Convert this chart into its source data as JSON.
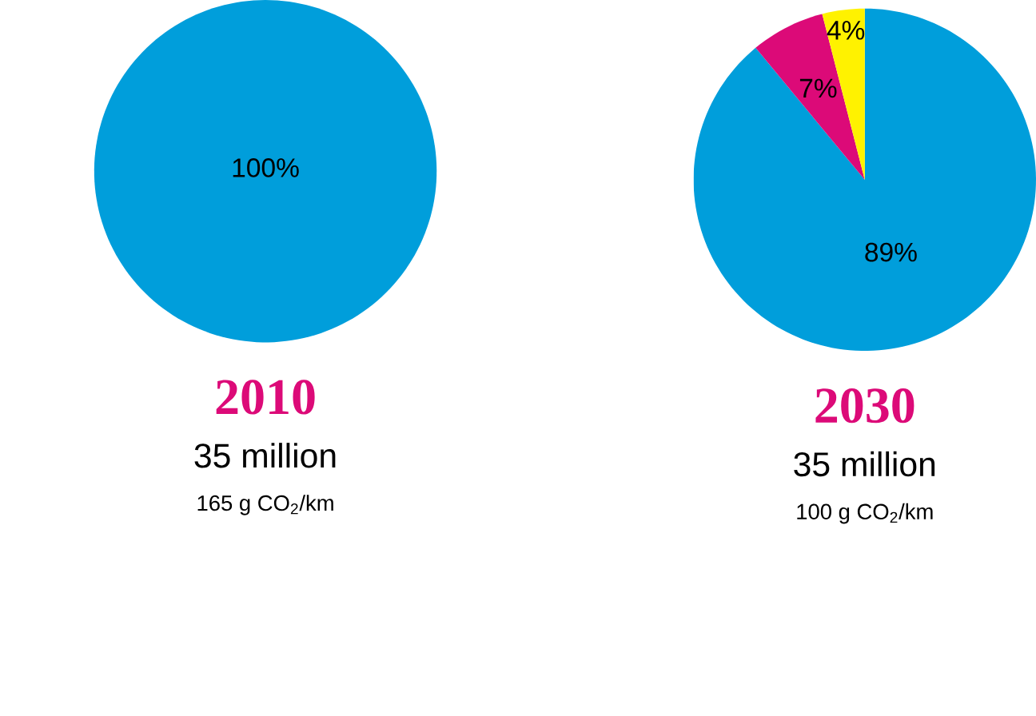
{
  "chart_data": [
    {
      "type": "pie",
      "title": "2010",
      "subtitle": "35 million",
      "annotations": [
        "165 g CO$_{2}$/km"
      ],
      "categories": [
        null
      ],
      "values": [
        100
      ],
      "colors": [
        "#009edb"
      ],
      "value_labels": [
        "100%"
      ]
    },
    {
      "type": "pie",
      "title": "2030",
      "subtitle": "35 million",
      "annotations": [
        "100 g CO$_{2}$/km"
      ],
      "categories": [
        null,
        null,
        null
      ],
      "values": [
        89,
        7,
        4
      ],
      "colors": [
        "#009edb",
        "#dc0a78",
        "#fff200"
      ],
      "value_labels": [
        "89%",
        "7%",
        "4%"
      ]
    }
  ]
}
